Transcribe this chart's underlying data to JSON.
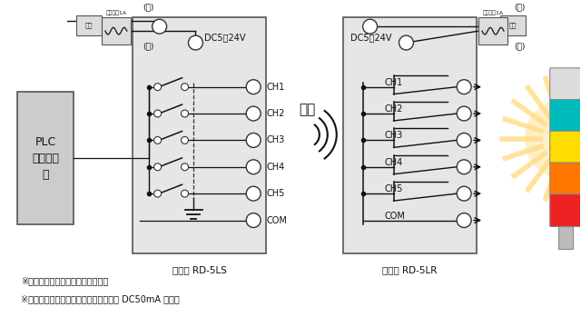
{
  "bg_color": "#ffffff",
  "fig_width": 6.4,
  "fig_height": 3.6,
  "channels": [
    "CH1",
    "CH2",
    "CH3",
    "CH4",
    "CH5",
    "COM"
  ],
  "tx_label": "DC5～24V",
  "rx_label": "DC5～24V",
  "send_label": "送信",
  "tx_caption": "送信機 RD-5LS",
  "rx_caption": "受信機 RD-5LR",
  "note1": "※ユニットは別途電源が必要です。",
  "note2": "※受信機のオープンコレクタ出力は最大 DC50mA です。",
  "fuse_label": "ヒューズ1A",
  "power_label": "電源",
  "plc_label": "PLC\n検出装置\n等",
  "light_gray": "#e6e6e6",
  "dark_gray": "#555555",
  "mid_gray": "#cccccc",
  "black": "#111111",
  "red": "#ee2222",
  "orange": "#ff7700",
  "yellow": "#ffdd00",
  "cyan": "#00bbbb",
  "white_light": "#dddddd",
  "glow_color": "#ffcc44"
}
